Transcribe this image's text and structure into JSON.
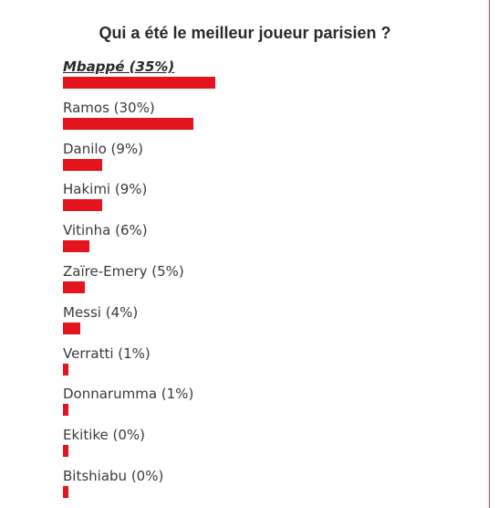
{
  "poll": {
    "title": "Qui a été le meilleur joueur parisien ?",
    "bar_color": "#e3141e",
    "options": [
      {
        "label": "Mbappé (35%)",
        "percent": 35,
        "leader": true
      },
      {
        "label": "Ramos (30%)",
        "percent": 30,
        "leader": false
      },
      {
        "label": "Danilo (9%)",
        "percent": 9,
        "leader": false
      },
      {
        "label": "Hakimi (9%)",
        "percent": 9,
        "leader": false
      },
      {
        "label": "Vitinha (6%)",
        "percent": 6,
        "leader": false
      },
      {
        "label": "Zaïre-Emery (5%)",
        "percent": 5,
        "leader": false
      },
      {
        "label": "Messi (4%)",
        "percent": 4,
        "leader": false
      },
      {
        "label": "Verratti (1%)",
        "percent": 1,
        "leader": false
      },
      {
        "label": "Donnarumma (1%)",
        "percent": 1,
        "leader": false
      },
      {
        "label": "Ekitike (0%)",
        "percent": 0,
        "leader": false
      },
      {
        "label": "Bitshiabu (0%)",
        "percent": 0,
        "leader": false
      }
    ]
  }
}
